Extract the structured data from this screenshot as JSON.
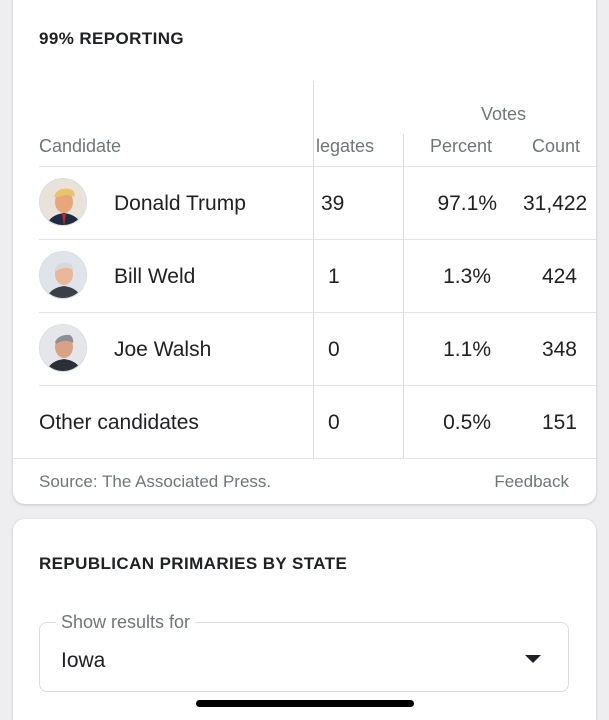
{
  "results": {
    "title": "99% REPORTING",
    "headers": {
      "votes_group": "Votes",
      "candidate": "Candidate",
      "delegates": "legates",
      "percent": "Percent",
      "count": "Count"
    },
    "rows": [
      {
        "name": "Donald Trump",
        "delegates": "39",
        "percent": "97.1%",
        "count": "31,422",
        "avatar": "avatar-donald-trump"
      },
      {
        "name": "Bill Weld",
        "delegates": "1",
        "percent": "1.3%",
        "count": "424",
        "avatar": "avatar-bill-weld"
      },
      {
        "name": "Joe Walsh",
        "delegates": "0",
        "percent": "1.1%",
        "count": "348",
        "avatar": "avatar-joe-walsh"
      },
      {
        "name": "Other candidates",
        "delegates": "0",
        "percent": "0.5%",
        "count": "151"
      }
    ],
    "source": "Source: The Associated Press.",
    "feedback": "Feedback"
  },
  "state_card": {
    "title": "REPUBLICAN PRIMARIES BY STATE",
    "select_label": "Show results for",
    "select_value": "Iowa",
    "dropdown_icon": "triangle-down-icon"
  },
  "colors": {
    "background": "#eeeef0",
    "card": "#ffffff",
    "muted_text": "#70757a",
    "divider": "#dadce0"
  }
}
